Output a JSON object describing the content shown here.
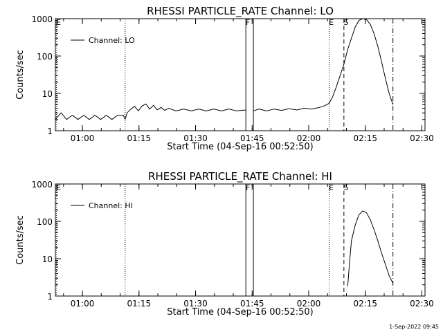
{
  "footer": "1-Sep-2022 09:45",
  "chart_data": [
    {
      "type": "line",
      "title": "RHESSI PARTICLE_RATE Channel: LO",
      "xlabel": "Start Time (04-Sep-16 00:52:50)",
      "ylabel": "Counts/sec",
      "x_unit": "minutes after 00:52:50",
      "xlim": [
        0,
        98
      ],
      "ylim": [
        1,
        1000
      ],
      "yscale": "log",
      "x_ticks": [
        {
          "x": 7.17,
          "label": "01:00"
        },
        {
          "x": 22.17,
          "label": "01:15"
        },
        {
          "x": 37.17,
          "label": "01:30"
        },
        {
          "x": 52.17,
          "label": "01:45"
        },
        {
          "x": 67.17,
          "label": "02:00"
        },
        {
          "x": 82.17,
          "label": "02:15"
        },
        {
          "x": 97.17,
          "label": "02:30"
        }
      ],
      "y_ticks": [
        {
          "y": 1,
          "label": "1"
        },
        {
          "y": 10,
          "label": "10"
        },
        {
          "y": 100,
          "label": "100"
        },
        {
          "y": 1000,
          "label": "1000"
        }
      ],
      "legend": {
        "label": "Channel: LO",
        "position": "top-left"
      },
      "markers": [
        {
          "x": 0.3,
          "style": "dotted",
          "label": "E"
        },
        {
          "x": 18.5,
          "style": "dotted",
          "label": ""
        },
        {
          "x": 50.5,
          "style": "solid",
          "label": "F"
        },
        {
          "x": 52.5,
          "style": "solid",
          "label": ""
        },
        {
          "x": 72.6,
          "style": "dotted",
          "label": "E"
        },
        {
          "x": 76.5,
          "style": "dashed",
          "label": "S"
        },
        {
          "x": 89.5,
          "style": "dashdot",
          "label": ""
        }
      ],
      "segments": [
        {
          "x": [
            0,
            1.5,
            3,
            4.5,
            6,
            7.5,
            9,
            10.5,
            12,
            13.5,
            15,
            16.5,
            18,
            18.5
          ],
          "y": [
            2,
            3,
            2,
            2.6,
            2,
            2.6,
            2,
            2.6,
            2,
            2.6,
            2,
            2.6,
            2.6,
            2
          ]
        },
        {
          "x": [
            18.5,
            19,
            20,
            21,
            22,
            23,
            24,
            25,
            26,
            27,
            28,
            29,
            30,
            32,
            34,
            36,
            38,
            40,
            42,
            44,
            46,
            48,
            50.5
          ],
          "y": [
            2,
            3,
            3.8,
            4.5,
            3.4,
            4.6,
            5.2,
            3.8,
            4.8,
            3.6,
            4.2,
            3.5,
            4,
            3.4,
            3.8,
            3.4,
            3.8,
            3.4,
            3.8,
            3.4,
            3.8,
            3.4,
            3.6
          ]
        },
        {
          "x": [
            52.5,
            54,
            56,
            58,
            60,
            62,
            64,
            66,
            68,
            70,
            71,
            72,
            72.6,
            73.5,
            74.5,
            75.5,
            76.5,
            77.5,
            78.5,
            79.5,
            80.5,
            81.5,
            82.5,
            83.5,
            84.5,
            85.5,
            86.5,
            87.5,
            88.5,
            89.5
          ],
          "y": [
            3.4,
            3.8,
            3.4,
            3.8,
            3.5,
            3.9,
            3.6,
            4,
            3.8,
            4.2,
            4.5,
            5,
            5.5,
            8,
            15,
            30,
            60,
            150,
            300,
            600,
            900,
            1000,
            950,
            700,
            400,
            180,
            70,
            25,
            10,
            5
          ]
        }
      ]
    },
    {
      "type": "line",
      "title": "RHESSI PARTICLE_RATE Channel: HI",
      "xlabel": "Start Time (04-Sep-16 00:52:50)",
      "ylabel": "Counts/sec",
      "x_unit": "minutes after 00:52:50",
      "xlim": [
        0,
        98
      ],
      "ylim": [
        1,
        1000
      ],
      "yscale": "log",
      "x_ticks": [
        {
          "x": 7.17,
          "label": "01:00"
        },
        {
          "x": 22.17,
          "label": "01:15"
        },
        {
          "x": 37.17,
          "label": "01:30"
        },
        {
          "x": 52.17,
          "label": "01:45"
        },
        {
          "x": 67.17,
          "label": "02:00"
        },
        {
          "x": 82.17,
          "label": "02:15"
        },
        {
          "x": 97.17,
          "label": "02:30"
        }
      ],
      "y_ticks": [
        {
          "y": 1,
          "label": "1"
        },
        {
          "y": 10,
          "label": "10"
        },
        {
          "y": 100,
          "label": "100"
        },
        {
          "y": 1000,
          "label": "1000"
        }
      ],
      "legend": {
        "label": "Channel: HI",
        "position": "top-left"
      },
      "markers": [
        {
          "x": 0.3,
          "style": "dotted",
          "label": "E"
        },
        {
          "x": 18.5,
          "style": "dotted",
          "label": ""
        },
        {
          "x": 50.5,
          "style": "solid",
          "label": "F"
        },
        {
          "x": 52.5,
          "style": "solid",
          "label": ""
        },
        {
          "x": 72.6,
          "style": "dotted",
          "label": "E"
        },
        {
          "x": 76.5,
          "style": "dashed",
          "label": "S"
        },
        {
          "x": 89.5,
          "style": "dashdot",
          "label": ""
        }
      ],
      "segments": [
        {
          "x": [
            77.5,
            78,
            78.5,
            79.5,
            80.5,
            81.5,
            82.5,
            83.5,
            84.5,
            85.5,
            86.5,
            87.5,
            88.5,
            89.5
          ],
          "y": [
            1.8,
            8,
            30,
            80,
            150,
            190,
            170,
            110,
            60,
            30,
            14,
            7,
            3.5,
            2.2
          ]
        }
      ]
    }
  ]
}
